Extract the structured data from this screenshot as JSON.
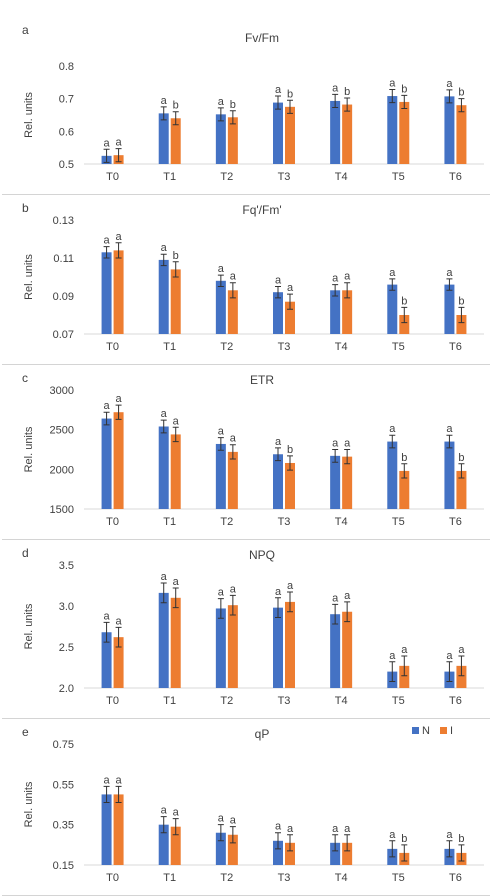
{
  "colors": {
    "N": "#4472c4",
    "I": "#ed7d31",
    "axis": "#d9d9d9",
    "text": "#404040"
  },
  "legend": {
    "N": "N",
    "I": "I",
    "position": "top-right"
  },
  "chart_data": [
    {
      "type": "bar",
      "letter": "a",
      "title": "Fv/Fm",
      "ylabel": "Rel. units",
      "categories": [
        "T0",
        "T1",
        "T2",
        "T3",
        "T4",
        "T5",
        "T6"
      ],
      "ylim": [
        0.5,
        0.8
      ],
      "yticks": [
        "0.8",
        "0.7",
        "0.6",
        "0.5"
      ],
      "ytick_values": [
        0.8,
        0.7,
        0.6,
        0.5
      ],
      "series": [
        {
          "name": "N",
          "values": [
            0.525,
            0.655,
            0.652,
            0.688,
            0.693,
            0.708,
            0.707
          ],
          "errors": [
            0.02,
            0.02,
            0.02,
            0.02,
            0.02,
            0.02,
            0.02
          ],
          "letters": [
            "a",
            "a",
            "a",
            "a",
            "a",
            "a",
            "a"
          ]
        },
        {
          "name": "I",
          "values": [
            0.527,
            0.64,
            0.643,
            0.675,
            0.682,
            0.69,
            0.68
          ],
          "errors": [
            0.02,
            0.02,
            0.02,
            0.02,
            0.02,
            0.02,
            0.02
          ],
          "letters": [
            "a",
            "b",
            "b",
            "b",
            "b",
            "b",
            "b"
          ]
        }
      ]
    },
    {
      "type": "bar",
      "letter": "b",
      "title": "Fq'/Fm'",
      "ylabel": "Rel. units",
      "categories": [
        "T0",
        "T1",
        "T2",
        "T3",
        "T4",
        "T5",
        "T6"
      ],
      "ylim": [
        0.07,
        0.13
      ],
      "yticks": [
        "0.13",
        "0.11",
        "0.09",
        "0.07"
      ],
      "ytick_values": [
        0.13,
        0.11,
        0.09,
        0.07
      ],
      "series": [
        {
          "name": "N",
          "values": [
            0.113,
            0.109,
            0.098,
            0.092,
            0.093,
            0.096,
            0.096
          ],
          "errors": [
            0.003,
            0.003,
            0.003,
            0.003,
            0.003,
            0.003,
            0.003
          ],
          "letters": [
            "a",
            "a",
            "a",
            "a",
            "a",
            "a",
            "a"
          ]
        },
        {
          "name": "I",
          "values": [
            0.114,
            0.104,
            0.093,
            0.087,
            0.093,
            0.08,
            0.08
          ],
          "errors": [
            0.004,
            0.004,
            0.004,
            0.004,
            0.004,
            0.004,
            0.004
          ],
          "letters": [
            "a",
            "b",
            "a",
            "a",
            "a",
            "b",
            "b"
          ]
        }
      ]
    },
    {
      "type": "bar",
      "letter": "c",
      "title": "ETR",
      "ylabel": "Rel. units",
      "categories": [
        "T0",
        "T1",
        "T2",
        "T3",
        "T4",
        "T5",
        "T6"
      ],
      "ylim": [
        1500,
        3000
      ],
      "yticks": [
        "3000",
        "2500",
        "2000",
        "1500"
      ],
      "ytick_values": [
        3000,
        2500,
        2000,
        1500
      ],
      "series": [
        {
          "name": "N",
          "values": [
            2640,
            2540,
            2320,
            2190,
            2170,
            2350,
            2350
          ],
          "errors": [
            80,
            80,
            80,
            80,
            80,
            80,
            80
          ],
          "letters": [
            "a",
            "a",
            "a",
            "a",
            "a",
            "a",
            "a"
          ]
        },
        {
          "name": "I",
          "values": [
            2720,
            2440,
            2220,
            2080,
            2160,
            1980,
            1980
          ],
          "errors": [
            90,
            90,
            90,
            90,
            90,
            90,
            90
          ],
          "letters": [
            "a",
            "a",
            "a",
            "b",
            "a",
            "b",
            "b"
          ]
        }
      ]
    },
    {
      "type": "bar",
      "letter": "d",
      "title": "NPQ",
      "ylabel": "Rel. units",
      "categories": [
        "T0",
        "T1",
        "T2",
        "T3",
        "T4",
        "T5",
        "T6"
      ],
      "ylim": [
        2.0,
        3.5
      ],
      "yticks": [
        "3.5",
        "3.0",
        "2.5",
        "2.0"
      ],
      "ytick_values": [
        3.5,
        3.0,
        2.5,
        2.0
      ],
      "series": [
        {
          "name": "N",
          "values": [
            2.68,
            3.16,
            2.97,
            2.98,
            2.9,
            2.2,
            2.2
          ],
          "errors": [
            0.12,
            0.12,
            0.12,
            0.12,
            0.12,
            0.12,
            0.12
          ],
          "letters": [
            "a",
            "a",
            "a",
            "a",
            "a",
            "a",
            "a"
          ]
        },
        {
          "name": "I",
          "values": [
            2.62,
            3.1,
            3.01,
            3.05,
            2.93,
            2.27,
            2.27
          ],
          "errors": [
            0.12,
            0.12,
            0.12,
            0.12,
            0.12,
            0.12,
            0.12
          ],
          "letters": [
            "a",
            "a",
            "a",
            "a",
            "a",
            "a",
            "a"
          ]
        }
      ]
    },
    {
      "type": "bar",
      "letter": "e",
      "title": "qP",
      "ylabel": "Rel. units",
      "categories": [
        "T0",
        "T1",
        "T2",
        "T3",
        "T4",
        "T5",
        "T6"
      ],
      "ylim": [
        0.15,
        0.75
      ],
      "yticks": [
        "0.75",
        "0.55",
        "0.35",
        "0.15"
      ],
      "ytick_values": [
        0.75,
        0.55,
        0.35,
        0.15
      ],
      "series": [
        {
          "name": "N",
          "values": [
            0.5,
            0.35,
            0.31,
            0.27,
            0.26,
            0.23,
            0.23
          ],
          "errors": [
            0.04,
            0.04,
            0.04,
            0.04,
            0.04,
            0.04,
            0.04
          ],
          "letters": [
            "a",
            "a",
            "a",
            "a",
            "a",
            "a",
            "a"
          ]
        },
        {
          "name": "I",
          "values": [
            0.5,
            0.34,
            0.3,
            0.26,
            0.26,
            0.21,
            0.21
          ],
          "errors": [
            0.04,
            0.04,
            0.04,
            0.04,
            0.04,
            0.04,
            0.04
          ],
          "letters": [
            "a",
            "a",
            "a",
            "a",
            "a",
            "b",
            "b"
          ]
        }
      ],
      "show_legend": true
    }
  ]
}
